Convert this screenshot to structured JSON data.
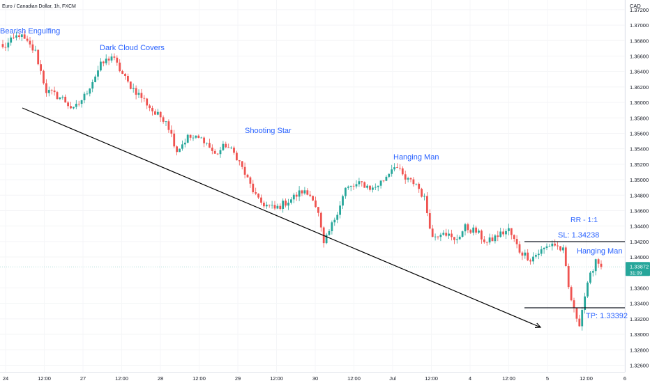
{
  "title": "Euro / Canadian Dollar, 1h, FXCM",
  "currency": "CAD",
  "colors": {
    "up": "#26a69a",
    "down": "#ef5350",
    "annotation": "#2962ff",
    "trendline": "#000000",
    "level_line": "#131722",
    "price_tag": "#26a69a",
    "current_price_line": "#b2dfdb",
    "axis_text": "#131722"
  },
  "icons": {
    "trendline_arrow": "arrow-head-icon"
  },
  "price_tag": {
    "price": "1.33872",
    "countdown": "31:09"
  },
  "annotations": [
    {
      "label": "Bearish Engulfing"
    },
    {
      "label": "Dark Cloud Covers"
    },
    {
      "label": "Shooting Star"
    },
    {
      "label": "Hanging Man"
    },
    {
      "label": "Hanging Man"
    },
    {
      "label": "RR -  1:1"
    },
    {
      "label": "SL: 1.34238"
    },
    {
      "label": "TP: 1.33392"
    }
  ],
  "chart_data": {
    "type": "candlestick",
    "title": "Euro / Canadian Dollar, 1h, FXCM",
    "ylabel": "CAD",
    "ylim": [
      1.3255,
      1.3728
    ],
    "y_ticks": [
      1.372,
      1.37,
      1.368,
      1.366,
      1.364,
      1.362,
      1.36,
      1.358,
      1.356,
      1.354,
      1.352,
      1.35,
      1.348,
      1.346,
      1.344,
      1.342,
      1.34,
      1.336,
      1.334,
      1.332,
      1.33,
      1.328,
      1.326
    ],
    "y_tick_labels": [
      "1.37200",
      "1.37000",
      "1.36800",
      "1.36600",
      "1.36400",
      "1.36200",
      "1.36000",
      "1.35800",
      "1.35600",
      "1.35400",
      "1.35200",
      "1.35000",
      "1.34800",
      "1.34600",
      "1.34400",
      "1.34200",
      "1.34000",
      "1.33600",
      "1.33400",
      "1.33200",
      "1.33000",
      "1.32800",
      "1.32600"
    ],
    "x_tick_labels": [
      "24",
      "12:00",
      "27",
      "12:00",
      "28",
      "12:00",
      "29",
      "12:00",
      "30",
      "12:00",
      "Jul",
      "12:00",
      "4",
      "12:00",
      "5",
      "12:00",
      "6"
    ],
    "anchors": [
      {
        "bar": 0,
        "price": 1.367
      },
      {
        "bar": 6,
        "price": 1.3688
      },
      {
        "bar": 12,
        "price": 1.3665
      },
      {
        "bar": 16,
        "price": 1.3615
      },
      {
        "bar": 22,
        "price": 1.3605
      },
      {
        "bar": 26,
        "price": 1.359
      },
      {
        "bar": 30,
        "price": 1.3608
      },
      {
        "bar": 36,
        "price": 1.3648
      },
      {
        "bar": 40,
        "price": 1.366
      },
      {
        "bar": 46,
        "price": 1.3625
      },
      {
        "bar": 52,
        "price": 1.3603
      },
      {
        "bar": 56,
        "price": 1.3585
      },
      {
        "bar": 60,
        "price": 1.3578
      },
      {
        "bar": 64,
        "price": 1.3538
      },
      {
        "bar": 68,
        "price": 1.3555
      },
      {
        "bar": 74,
        "price": 1.3552
      },
      {
        "bar": 78,
        "price": 1.3532
      },
      {
        "bar": 82,
        "price": 1.3545
      },
      {
        "bar": 86,
        "price": 1.353
      },
      {
        "bar": 90,
        "price": 1.35
      },
      {
        "bar": 94,
        "price": 1.3472
      },
      {
        "bar": 100,
        "price": 1.3462
      },
      {
        "bar": 106,
        "price": 1.3475
      },
      {
        "bar": 110,
        "price": 1.3485
      },
      {
        "bar": 114,
        "price": 1.3478
      },
      {
        "bar": 116,
        "price": 1.3455
      },
      {
        "bar": 118,
        "price": 1.3415
      },
      {
        "bar": 122,
        "price": 1.345
      },
      {
        "bar": 126,
        "price": 1.3488
      },
      {
        "bar": 132,
        "price": 1.3495
      },
      {
        "bar": 136,
        "price": 1.3488
      },
      {
        "bar": 140,
        "price": 1.35
      },
      {
        "bar": 144,
        "price": 1.352
      },
      {
        "bar": 148,
        "price": 1.35
      },
      {
        "bar": 152,
        "price": 1.3495
      },
      {
        "bar": 155,
        "price": 1.3475
      },
      {
        "bar": 158,
        "price": 1.3425
      },
      {
        "bar": 162,
        "price": 1.3435
      },
      {
        "bar": 166,
        "price": 1.342
      },
      {
        "bar": 170,
        "price": 1.3438
      },
      {
        "bar": 174,
        "price": 1.3433
      },
      {
        "bar": 178,
        "price": 1.3418
      },
      {
        "bar": 182,
        "price": 1.3428
      },
      {
        "bar": 186,
        "price": 1.3435
      },
      {
        "bar": 190,
        "price": 1.3408
      },
      {
        "bar": 194,
        "price": 1.3398
      },
      {
        "bar": 198,
        "price": 1.3408
      },
      {
        "bar": 202,
        "price": 1.3418
      },
      {
        "bar": 206,
        "price": 1.3408
      },
      {
        "bar": 208,
        "price": 1.336
      },
      {
        "bar": 210,
        "price": 1.333
      },
      {
        "bar": 212,
        "price": 1.3315
      },
      {
        "bar": 214,
        "price": 1.335
      },
      {
        "bar": 216,
        "price": 1.3375
      },
      {
        "bar": 218,
        "price": 1.3398
      },
      {
        "bar": 220,
        "price": 1.3387
      }
    ],
    "total_bars": 221,
    "current_price": 1.33872,
    "stop_loss": 1.34238,
    "take_profit": 1.33392,
    "risk_reward": "1:1"
  }
}
